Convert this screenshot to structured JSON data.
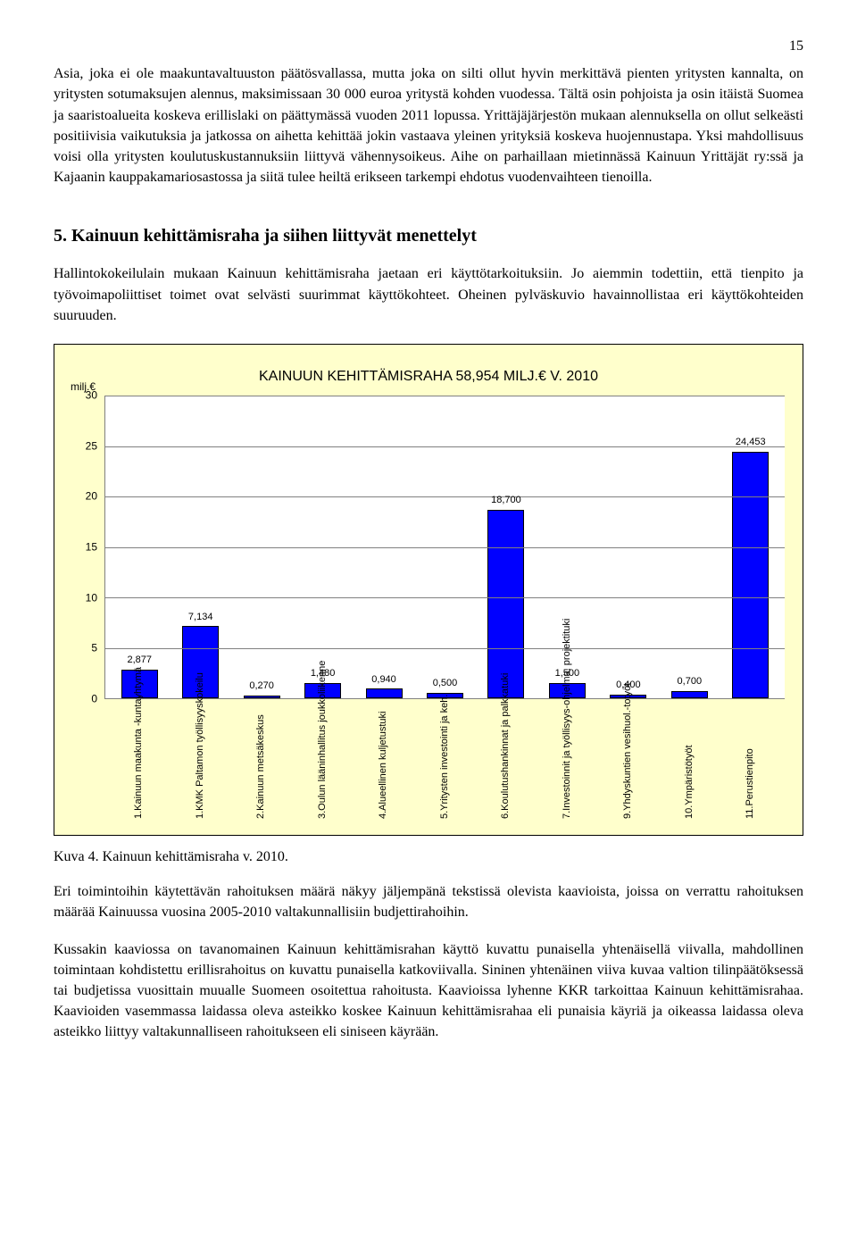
{
  "page_number": "15",
  "para1": "Asia, joka ei ole maakuntavaltuuston päätösvallassa, mutta joka on silti ollut hyvin merkittävä pienten yritysten kannalta, on yritysten sotumaksujen alennus, maksimissaan 30 000 euroa yritystä kohden vuodessa. Tältä osin pohjoista ja osin itäistä Suomea ja saaristoalueita koskeva erillislaki on päättymässä vuoden 2011 lopussa. Yrittäjäjärjestön mukaan alennuksella on ollut selkeästi positiivisia vaikutuksia ja jatkossa on aihetta kehittää jokin vastaava yleinen yrityksiä koskeva huojennustapa. Yksi mahdollisuus voisi olla yritysten koulutuskustannuksiin liittyvä vähennysoikeus. Aihe on parhaillaan mietinnässä Kainuun Yrittäjät ry:ssä ja Kajaanin kauppakamariosastossa ja siitä tulee heiltä erikseen tarkempi ehdotus vuodenvaihteen tienoilla.",
  "section_heading": "5.  Kainuun kehittämisraha ja siihen liittyvät menettelyt",
  "para2": "Hallintokokeilulain mukaan Kainuun kehittämisraha jaetaan eri käyttötarkoituksiin. Jo aiemmin todettiin, että tienpito ja työvoimapoliittiset toimet ovat selvästi suurimmat käyttökohteet. Oheinen pylväskuvio havainnollistaa eri käyttökohteiden suuruuden.",
  "chart": {
    "type": "bar",
    "title": "KAINUUN KEHITTÄMISRAHA 58,954 MILJ.€ V. 2010",
    "y_unit": "milj.€",
    "ymax": 30,
    "ytick_step": 5,
    "yticks": [
      0,
      5,
      10,
      15,
      20,
      25,
      30
    ],
    "bar_color": "#0000ff",
    "bar_border": "#000000",
    "plot_bg": "#ffffff",
    "panel_bg": "#ffffcc",
    "grid_color": "#808080",
    "data": [
      {
        "label": "1.Kainuun maakunta\n-kuntayhtymä",
        "value": 2.877,
        "value_label": "2,877"
      },
      {
        "label": "1.KMK Paltamon\ntyöllisyyskokeilu",
        "value": 7.134,
        "value_label": "7,134"
      },
      {
        "label": "2.Kainuun\nmetsäkeskus",
        "value": 0.27,
        "value_label": "0,270"
      },
      {
        "label": "3.Oulun\nlääninhallitus\njoukkoliikenne",
        "value": 1.48,
        "value_label": "1,480"
      },
      {
        "label": "4.Alueellinen\nkuljetustuki",
        "value": 0.94,
        "value_label": "0,940"
      },
      {
        "label": "5.Yritysten\ninvestointi ja keh.",
        "value": 0.5,
        "value_label": "0,500"
      },
      {
        "label": "6.Koulutushankinnat\nja palkkatuki",
        "value": 18.7,
        "value_label": "18,700"
      },
      {
        "label": "7.Investoinnit ja\ntyöllisyys-ohjelma,\nprojektituki",
        "value": 1.5,
        "value_label": "1,500"
      },
      {
        "label": "9.Yhdyskuntien\nvesihuol.-totyöt",
        "value": 0.4,
        "value_label": "0,400"
      },
      {
        "label": "10.Ympäristötyöt",
        "value": 0.7,
        "value_label": "0,700"
      },
      {
        "label": "11.Perustienpito",
        "value": 24.453,
        "value_label": "24,453"
      }
    ]
  },
  "figure_caption": "Kuva 4. Kainuun kehittämisraha v. 2010.",
  "para3": "Eri toimintoihin käytettävän rahoituksen määrä näkyy jäljempänä tekstissä olevista kaavioista, joissa on verrattu rahoituksen määrää Kainuussa vuosina 2005-2010 valtakunnallisiin budjettirahoihin.",
  "para4": "Kussakin kaaviossa on tavanomainen Kainuun kehittämisrahan käyttö kuvattu punaisella yhtenäisellä viivalla, mahdollinen toimintaan kohdistettu erillisrahoitus on kuvattu punaisella katkoviivalla. Sininen yhtenäinen viiva kuvaa valtion tilinpäätöksessä tai budjetissa vuosittain muualle Suomeen osoitettua rahoitusta. Kaavioissa lyhenne KKR tarkoittaa Kainuun kehittämisrahaa. Kaavioiden vasemmassa laidassa oleva asteikko koskee Kainuun kehittämisrahaa eli punaisia käyriä ja oikeassa laidassa oleva asteikko liittyy valtakunnalliseen rahoitukseen eli siniseen käyrään."
}
